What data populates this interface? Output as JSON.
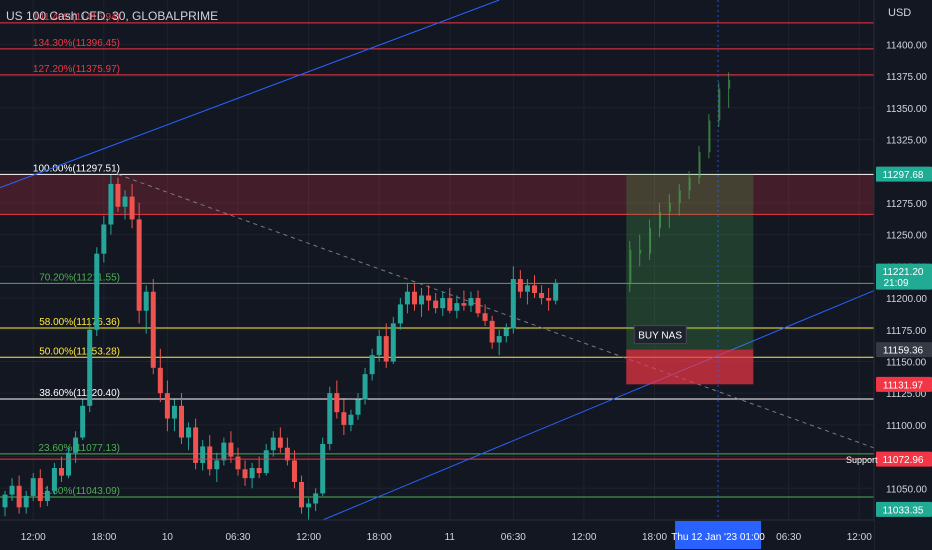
{
  "header": {
    "symbol_title": "US 100 Cash CFD, 30, GLOBALPRIME",
    "currency": "USD"
  },
  "colors": {
    "background": "#131722",
    "up_candle": "#26a69a",
    "down_candle": "#ef5350",
    "axis_text": "#d1d4dc",
    "trend_line": "#2962ff",
    "fib_red": "#f23645",
    "fib_green": "#4caf50",
    "fib_yellow": "#ffeb3b",
    "fib_white": "#ffffff",
    "label_green": "#22ab94",
    "label_red": "#f23645",
    "label_gray": "#363a45",
    "label_blue": "#2962ff"
  },
  "chart_data": {
    "type": "candlestick",
    "ylim": [
      11025,
      11435
    ],
    "y_ticks": [
      "11400.00",
      "11375.00",
      "11350.00",
      "11325.00",
      "11300.00",
      "11275.00",
      "11250.00",
      "11225.00",
      "11200.00",
      "11175.00",
      "11150.00",
      "11125.00",
      "11100.00",
      "11075.00",
      "11050.00"
    ],
    "y_tick_values": [
      11400,
      11375,
      11350,
      11325,
      11300,
      11275,
      11250,
      11225,
      11200,
      11175,
      11150,
      11125,
      11100,
      11075,
      11050
    ],
    "x_ticks": [
      "12:00",
      "18:00",
      "10",
      "06:30",
      "12:00",
      "18:00",
      "11",
      "06:30",
      "12:00",
      "18:00",
      "06:30",
      "12:00"
    ],
    "x_tick_bars": [
      4,
      14,
      23,
      33,
      43,
      53,
      63,
      72,
      82,
      92,
      111,
      121
    ],
    "fib_levels": [
      {
        "label": "141.40%(11416.94)",
        "value": 11416.94,
        "color": "#f23645"
      },
      {
        "label": "134.30%(11396.45)",
        "value": 11396.45,
        "color": "#f23645"
      },
      {
        "label": "127.20%(11375.97)",
        "value": 11375.97,
        "color": "#f23645"
      },
      {
        "label": "100.00%(11297.51)",
        "value": 11297.51,
        "color": "#ffffff"
      },
      {
        "label": "70.20%(11211.55)",
        "value": 11211.55,
        "color": "#4caf50"
      },
      {
        "label": "58.00%(11176.36)",
        "value": 11176.36,
        "color": "#ffeb3b"
      },
      {
        "label": "50.00%(11153.28)",
        "value": 11153.28,
        "color": "#ffeb3b"
      },
      {
        "label": "38.60%(11120.40)",
        "value": 11120.4,
        "color": "#ffffff"
      },
      {
        "label": "23.60%(11077.13)",
        "value": 11077.13,
        "color": "#4caf50"
      },
      {
        "label": "11.80%(11043.09)",
        "value": 11043.09,
        "color": "#4caf50"
      }
    ],
    "resistance_zone": [
      11266,
      11297.68
    ],
    "position": {
      "label": "BUY NAS",
      "entry": 11159.36,
      "target": 11297.68,
      "stop": 11131.97,
      "start_bar": 88,
      "end_bar": 106
    },
    "price_labels": [
      {
        "text": "11297.68",
        "value": 11297.68,
        "color": "#22ab94"
      },
      {
        "text": "11221.20",
        "text2": "21:09",
        "value": 11221.2,
        "color": "#22ab94"
      },
      {
        "text": "11159.36",
        "value": 11159.36,
        "color": "#363a45"
      },
      {
        "text": "11131.97",
        "value": 11131.97,
        "color": "#f23645"
      },
      {
        "text": "11072.96",
        "value": 11072.96,
        "color": "#f23645"
      },
      {
        "text": "11033.35",
        "value": 11033.35,
        "color": "#22ab94"
      }
    ],
    "support_label": "Support",
    "support_value": 11072.96,
    "crosshair": {
      "bar": 101,
      "label": "Thu 12 Jan '23   01:00"
    },
    "trend_lines": [
      {
        "from": [
          -16,
          11255
        ],
        "to": [
          70,
          11435
        ],
        "style": "solid"
      },
      {
        "from": [
          45,
          11025
        ],
        "to": [
          124,
          11208
        ],
        "style": "solid"
      },
      {
        "from": [
          16,
          11297.5
        ],
        "to": [
          124,
          11080
        ],
        "style": "dashed"
      }
    ],
    "candles": [
      [
        11035,
        11048,
        11028,
        11045
      ],
      [
        11045,
        11058,
        11040,
        11052
      ],
      [
        11052,
        11060,
        11030,
        11035
      ],
      [
        11035,
        11048,
        11030,
        11044
      ],
      [
        11044,
        11062,
        11040,
        11058
      ],
      [
        11058,
        11065,
        11035,
        11040
      ],
      [
        11040,
        11052,
        11036,
        11048
      ],
      [
        11048,
        11070,
        11045,
        11066
      ],
      [
        11066,
        11075,
        11055,
        11060
      ],
      [
        11060,
        11082,
        11058,
        11078
      ],
      [
        11078,
        11095,
        11070,
        11090
      ],
      [
        11090,
        11120,
        11088,
        11115
      ],
      [
        11115,
        11180,
        11110,
        11175
      ],
      [
        11175,
        11240,
        11170,
        11235
      ],
      [
        11235,
        11265,
        11228,
        11258
      ],
      [
        11258,
        11297,
        11250,
        11290
      ],
      [
        11290,
        11295,
        11268,
        11272
      ],
      [
        11272,
        11285,
        11262,
        11280
      ],
      [
        11280,
        11290,
        11255,
        11262
      ],
      [
        11262,
        11275,
        11180,
        11190
      ],
      [
        11190,
        11210,
        11172,
        11205
      ],
      [
        11205,
        11215,
        11140,
        11145
      ],
      [
        11145,
        11160,
        11118,
        11125
      ],
      [
        11125,
        11135,
        11095,
        11105
      ],
      [
        11105,
        11120,
        11095,
        11115
      ],
      [
        11115,
        11125,
        11085,
        11090
      ],
      [
        11090,
        11102,
        11080,
        11098
      ],
      [
        11098,
        11105,
        11065,
        11070
      ],
      [
        11070,
        11088,
        11064,
        11083
      ],
      [
        11083,
        11092,
        11060,
        11065
      ],
      [
        11065,
        11078,
        11055,
        11072
      ],
      [
        11072,
        11090,
        11068,
        11086
      ],
      [
        11086,
        11095,
        11070,
        11075
      ],
      [
        11075,
        11082,
        11060,
        11065
      ],
      [
        11065,
        11072,
        11052,
        11058
      ],
      [
        11058,
        11070,
        11050,
        11066
      ],
      [
        11066,
        11075,
        11058,
        11062
      ],
      [
        11062,
        11085,
        11060,
        11080
      ],
      [
        11080,
        11095,
        11075,
        11090
      ],
      [
        11090,
        11098,
        11078,
        11082
      ],
      [
        11082,
        11090,
        11068,
        11072
      ],
      [
        11072,
        11080,
        11050,
        11055
      ],
      [
        11055,
        11060,
        11030,
        11035
      ],
      [
        11035,
        11042,
        11025,
        11038
      ],
      [
        11038,
        11050,
        11032,
        11046
      ],
      [
        11046,
        11090,
        11044,
        11085
      ],
      [
        11085,
        11130,
        11080,
        11125
      ],
      [
        11125,
        11135,
        11105,
        11110
      ],
      [
        11110,
        11120,
        11092,
        11100
      ],
      [
        11100,
        11112,
        11095,
        11108
      ],
      [
        11108,
        11125,
        11104,
        11120
      ],
      [
        11120,
        11145,
        11116,
        11140
      ],
      [
        11140,
        11160,
        11135,
        11155
      ],
      [
        11155,
        11175,
        11150,
        11170
      ],
      [
        11170,
        11180,
        11145,
        11150
      ],
      [
        11150,
        11185,
        11148,
        11180
      ],
      [
        11180,
        11200,
        11175,
        11195
      ],
      [
        11195,
        11212,
        11188,
        11205
      ],
      [
        11205,
        11212,
        11190,
        11195
      ],
      [
        11195,
        11208,
        11185,
        11202
      ],
      [
        11202,
        11210,
        11190,
        11198
      ],
      [
        11198,
        11204,
        11188,
        11192
      ],
      [
        11192,
        11205,
        11186,
        11200
      ],
      [
        11200,
        11208,
        11188,
        11190
      ],
      [
        11190,
        11202,
        11184,
        11196
      ],
      [
        11196,
        11206,
        11190,
        11194
      ],
      [
        11194,
        11205,
        11189,
        11200
      ],
      [
        11200,
        11206,
        11185,
        11188
      ],
      [
        11188,
        11195,
        11178,
        11182
      ],
      [
        11182,
        11186,
        11160,
        11165
      ],
      [
        11165,
        11175,
        11155,
        11170
      ],
      [
        11170,
        11180,
        11165,
        11176
      ],
      [
        11176,
        11225,
        11172,
        11215
      ],
      [
        11215,
        11222,
        11200,
        11205
      ],
      [
        11205,
        11215,
        11195,
        11210
      ],
      [
        11210,
        11218,
        11200,
        11204
      ],
      [
        11204,
        11210,
        11195,
        11200
      ],
      [
        11200,
        11208,
        11190,
        11198
      ],
      [
        11198,
        11215,
        11195,
        11212
      ]
    ],
    "projection": [
      [
        11212,
        11245,
        11205,
        11238
      ],
      [
        11238,
        11250,
        11225,
        11235
      ],
      [
        11235,
        11262,
        11230,
        11255
      ],
      [
        11255,
        11275,
        11248,
        11268
      ],
      [
        11268,
        11282,
        11255,
        11275
      ],
      [
        11275,
        11290,
        11265,
        11285
      ],
      [
        11285,
        11300,
        11278,
        11295
      ],
      [
        11295,
        11320,
        11290,
        11315
      ],
      [
        11315,
        11345,
        11310,
        11340
      ],
      [
        11340,
        11370,
        11335,
        11365
      ],
      [
        11365,
        11378,
        11350,
        11372
      ]
    ]
  }
}
